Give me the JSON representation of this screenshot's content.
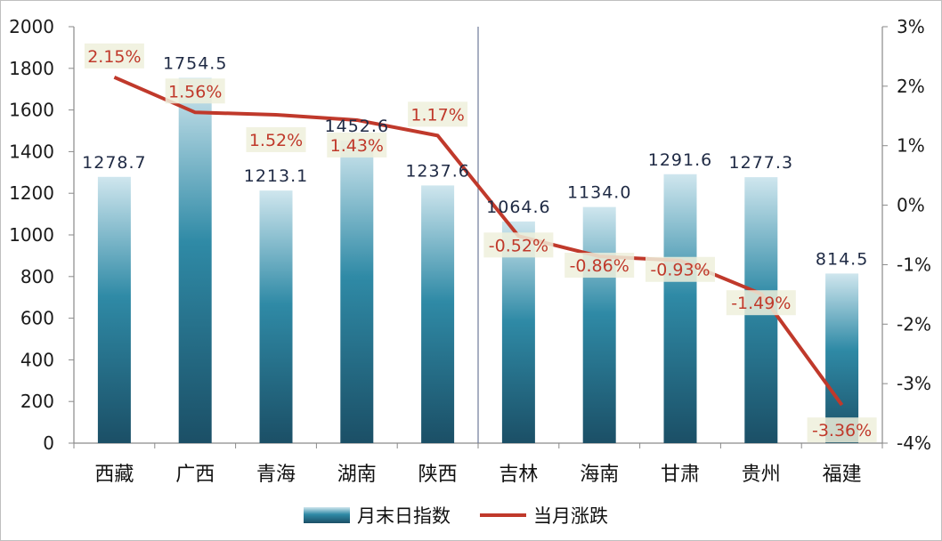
{
  "chart_data": {
    "type": "bar+line",
    "categories": [
      "西藏",
      "广西",
      "青海",
      "湖南",
      "陕西",
      "吉林",
      "海南",
      "甘肃",
      "贵州",
      "福建"
    ],
    "series": [
      {
        "name": "月末日指数",
        "type": "bar",
        "axis": "left",
        "values": [
          1278.7,
          1754.5,
          1213.1,
          1452.6,
          1237.6,
          1064.6,
          1134.0,
          1291.6,
          1277.3,
          814.5
        ],
        "labels": [
          "1278.7",
          "1754.5",
          "1213.1",
          "1452.6",
          "1237.6",
          "1064.6",
          "1134.0",
          "1291.6",
          "1277.3",
          "814.5"
        ]
      },
      {
        "name": "当月涨跌",
        "type": "line",
        "axis": "right",
        "values": [
          2.15,
          1.56,
          1.52,
          1.43,
          1.17,
          -0.52,
          -0.86,
          -0.93,
          -1.49,
          -3.36
        ],
        "labels": [
          "2.15%",
          "1.56%",
          "1.52%",
          "1.43%",
          "1.17%",
          "-0.52%",
          "-0.86%",
          "-0.93%",
          "-1.49%",
          "-3.36%"
        ]
      }
    ],
    "y_left": {
      "min": 0,
      "max": 2000,
      "step": 200,
      "ticks": [
        "0",
        "200",
        "400",
        "600",
        "800",
        "1000",
        "1200",
        "1400",
        "1600",
        "1800",
        "2000"
      ]
    },
    "y_right": {
      "min": -4,
      "max": 3,
      "step": 1,
      "ticks": [
        "-4%",
        "-3%",
        "-2%",
        "-1%",
        "0%",
        "1%",
        "2%",
        "3%"
      ]
    },
    "divider_after_category_index": 4,
    "legend_position": "bottom-center",
    "colors": {
      "bar_top": "#cfe6ee",
      "bar_mid": "#2f8aa6",
      "bar_bottom": "#1b4f66",
      "line": "#c0392b",
      "label_box": "#eef0dc"
    }
  }
}
